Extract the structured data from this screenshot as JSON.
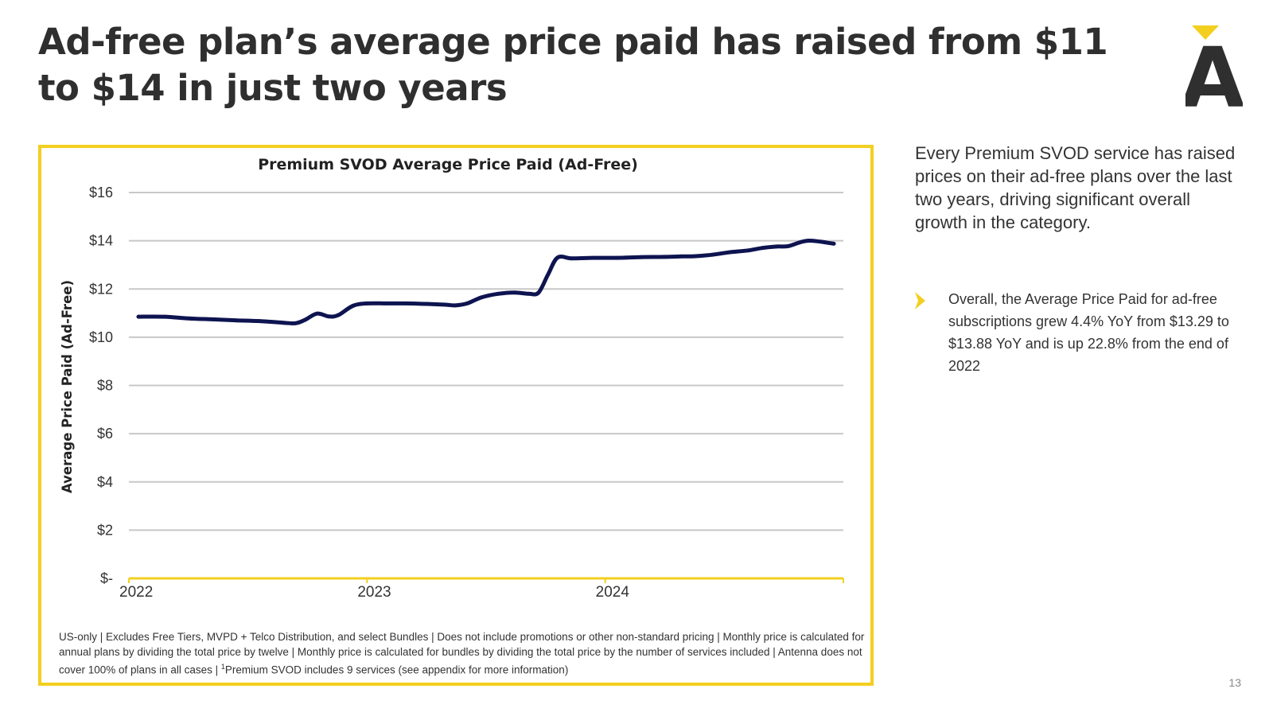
{
  "slide": {
    "title": "Ad-free plan’s average price paid has raised from $11 to $14 in just two years",
    "page_number": "13",
    "side_text": "Every Premium SVOD service has raised prices on their ad-free plans over the last two years, driving significant overall growth in the category.",
    "bullet": "Overall, the Average Price Paid for ad-free subscriptions grew 4.4% YoY from $13.29 to $13.88 YoY and is up 22.8% from the end of 2022",
    "footnote_main": "US-only | Excludes Free Tiers, MVPD + Telco Distribution, and select Bundles | Does not include promotions or other non-standard pricing | Monthly price is calculated for annual plans by dividing the total price by twelve | Monthly price is calculated for bundles by dividing the total price by the number of services included | Antenna does not cover 100% of plans in all cases | ",
    "footnote_sup": "1",
    "footnote_tail": "Premium SVOD includes 9 services (see appendix for more information)",
    "logo_letter": "A"
  },
  "colors": {
    "accent": "#f3cf1f",
    "line": "#0e1450",
    "grid": "#c8c8c8",
    "text": "#333333"
  },
  "chart_data": {
    "type": "line",
    "title": "Premium SVOD Average Price Paid (Ad-Free)",
    "xlabel": "",
    "ylabel": "Average Price Paid (Ad-Free)",
    "ylim": [
      0,
      16
    ],
    "xlim": [
      2022,
      2025
    ],
    "yticks": [
      0,
      2,
      4,
      6,
      8,
      10,
      12,
      14,
      16
    ],
    "ytick_labels": [
      "$-",
      "$2",
      "$4",
      "$6",
      "$8",
      "$10",
      "$12",
      "$14",
      "$16"
    ],
    "xticks": [
      2022,
      2023,
      2024
    ],
    "xtick_labels": [
      "2022",
      "2023",
      "2024"
    ],
    "grid": true,
    "series": [
      {
        "name": "Premium SVOD Average Price Paid (Ad-Free)",
        "x": [
          2022.04,
          2022.15,
          2022.25,
          2022.35,
          2022.45,
          2022.55,
          2022.65,
          2022.7,
          2022.74,
          2022.79,
          2022.84,
          2022.88,
          2022.94,
          2023.0,
          2023.08,
          2023.16,
          2023.25,
          2023.33,
          2023.37,
          2023.42,
          2023.48,
          2023.55,
          2023.62,
          2023.68,
          2023.72,
          2023.76,
          2023.8,
          2023.86,
          2023.95,
          2024.05,
          2024.15,
          2024.25,
          2024.32,
          2024.38,
          2024.45,
          2024.52,
          2024.6,
          2024.66,
          2024.72,
          2024.77,
          2024.85,
          2024.96
        ],
        "y": [
          10.85,
          10.85,
          10.78,
          10.74,
          10.7,
          10.67,
          10.6,
          10.58,
          10.72,
          10.98,
          10.86,
          10.92,
          11.3,
          11.4,
          11.4,
          11.4,
          11.38,
          11.35,
          11.32,
          11.4,
          11.65,
          11.8,
          11.85,
          11.8,
          11.85,
          12.6,
          13.3,
          13.27,
          13.29,
          13.29,
          13.32,
          13.33,
          13.35,
          13.36,
          13.42,
          13.52,
          13.6,
          13.7,
          13.76,
          13.78,
          14.0,
          13.88
        ]
      }
    ]
  }
}
